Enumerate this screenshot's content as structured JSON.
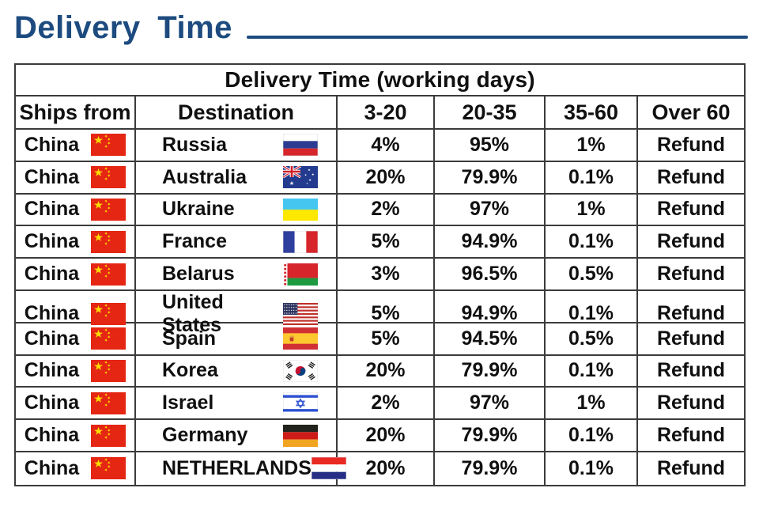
{
  "page": {
    "title": "Delivery Time",
    "accent_color": "#1d4b7f"
  },
  "table": {
    "caption": "Delivery Time (working days)",
    "columns": [
      "Ships from",
      "Destination",
      "3-20",
      "20-35",
      "35-60",
      "Over 60"
    ],
    "rows": [
      {
        "ships_from": "China",
        "ships_from_flag": "flag-china",
        "destination": "Russia",
        "destination_flag": "flag-russia",
        "pct_3_20": "4%",
        "pct_20_35": "95%",
        "pct_35_60": "1%",
        "over_60": "Refund"
      },
      {
        "ships_from": "China",
        "ships_from_flag": "flag-china",
        "destination": "Australia",
        "destination_flag": "flag-australia",
        "pct_3_20": "20%",
        "pct_20_35": "79.9%",
        "pct_35_60": "0.1%",
        "over_60": "Refund"
      },
      {
        "ships_from": "China",
        "ships_from_flag": "flag-china",
        "destination": "Ukraine",
        "destination_flag": "flag-ukraine",
        "pct_3_20": "2%",
        "pct_20_35": "97%",
        "pct_35_60": "1%",
        "over_60": "Refund"
      },
      {
        "ships_from": "China",
        "ships_from_flag": "flag-china",
        "destination": "France",
        "destination_flag": "flag-france",
        "pct_3_20": "5%",
        "pct_20_35": "94.9%",
        "pct_35_60": "0.1%",
        "over_60": "Refund"
      },
      {
        "ships_from": "China",
        "ships_from_flag": "flag-china",
        "destination": "Belarus",
        "destination_flag": "flag-belarus",
        "pct_3_20": "3%",
        "pct_20_35": "96.5%",
        "pct_35_60": "0.5%",
        "over_60": "Refund"
      },
      {
        "ships_from": "China",
        "ships_from_flag": "flag-china",
        "destination": "United States",
        "destination_flag": "flag-united-states",
        "pct_3_20": "5%",
        "pct_20_35": "94.9%",
        "pct_35_60": "0.1%",
        "over_60": "Refund"
      },
      {
        "ships_from": "China",
        "ships_from_flag": "flag-china",
        "destination": "Spain",
        "destination_flag": "flag-spain",
        "pct_3_20": "5%",
        "pct_20_35": "94.5%",
        "pct_35_60": "0.5%",
        "over_60": "Refund"
      },
      {
        "ships_from": "China",
        "ships_from_flag": "flag-china",
        "destination": "Korea",
        "destination_flag": "flag-korea",
        "pct_3_20": "20%",
        "pct_20_35": "79.9%",
        "pct_35_60": "0.1%",
        "over_60": "Refund"
      },
      {
        "ships_from": "China",
        "ships_from_flag": "flag-china",
        "destination": "Israel",
        "destination_flag": "flag-israel",
        "pct_3_20": "2%",
        "pct_20_35": "97%",
        "pct_35_60": "1%",
        "over_60": "Refund"
      },
      {
        "ships_from": "China",
        "ships_from_flag": "flag-china",
        "destination": "Germany",
        "destination_flag": "flag-germany",
        "pct_3_20": "20%",
        "pct_20_35": "79.9%",
        "pct_35_60": "0.1%",
        "over_60": "Refund"
      },
      {
        "ships_from": "China",
        "ships_from_flag": "flag-china",
        "destination": "NETHERLANDS",
        "destination_flag": "flag-netherlands",
        "pct_3_20": "20%",
        "pct_20_35": "79.9%",
        "pct_35_60": "0.1%",
        "over_60": "Refund"
      }
    ]
  }
}
